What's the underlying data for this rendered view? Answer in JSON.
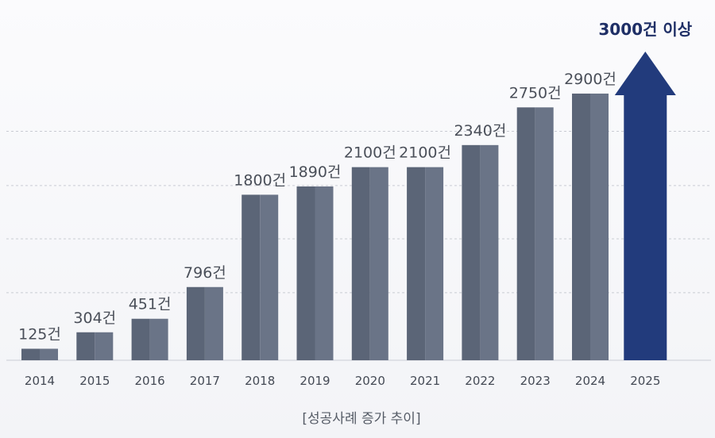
{
  "chart_data": {
    "type": "bar",
    "categories": [
      "2014",
      "2015",
      "2016",
      "2017",
      "2018",
      "2019",
      "2020",
      "2021",
      "2022",
      "2023",
      "2024",
      "2025"
    ],
    "values": [
      125,
      304,
      451,
      796,
      1800,
      1890,
      2100,
      2100,
      2340,
      2750,
      2900,
      3000
    ],
    "value_labels": [
      "125건",
      "304건",
      "451건",
      "796건",
      "1800건",
      "1890건",
      "2100건",
      "2100건",
      "2340건",
      "2750건",
      "2900건",
      "3000건 이상"
    ],
    "highlight_index": 11,
    "highlight_shape": "arrow",
    "ylim": [
      0,
      3400
    ],
    "grid": true,
    "caption": "[성공사례 증가 추이]",
    "colors": {
      "bar": "#5f697b",
      "highlight": "#223b7c",
      "grid": "#c9ccd3"
    }
  }
}
